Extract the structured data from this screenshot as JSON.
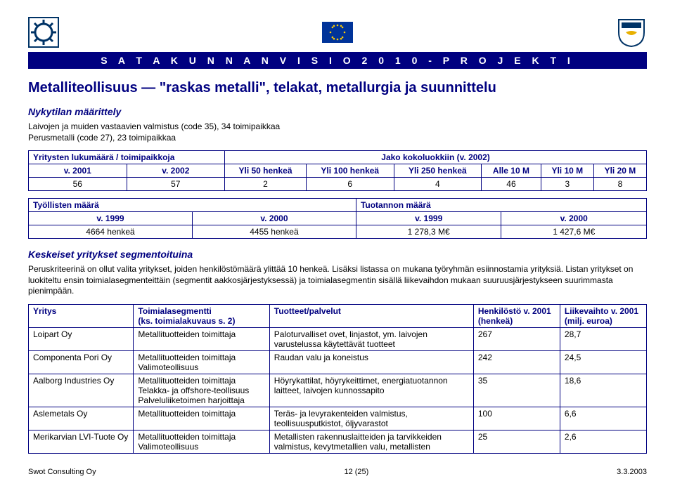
{
  "banner_text": "S A T A K U N N A N   V I S I O   2 0 1 0   - P R O J E K T I",
  "title": "Metalliteollisuus — \"raskas metalli\", telakat, metallurgia ja suunnittelu",
  "section1_heading": "Nykytilan määrittely",
  "intro_line1": "Laivojen ja muiden vastaavien valmistus (code 35), 34 toimipaikkaa",
  "intro_line2": "Perusmetalli (code 27), 23 toimipaikkaa",
  "table1": {
    "header_left": "Yritysten lukumäärä / toimipaikkoja",
    "header_right": "Jako kokoluokkiin (v. 2002)",
    "cols": [
      "v. 2001",
      "v. 2002",
      "Yli 50 henkeä",
      "Yli 100 henkeä",
      "Yli 250 henkeä",
      "Alle 10 M",
      "Yli 10 M",
      "Yli 20 M"
    ],
    "row": [
      "56",
      "57",
      "2",
      "6",
      "4",
      "46",
      "3",
      "8"
    ]
  },
  "table2": {
    "header_left": "Työllisten määrä",
    "header_right": "Tuotannon määrä",
    "cols": [
      "v. 1999",
      "v. 2000",
      "v. 1999",
      "v. 2000"
    ],
    "row": [
      "4664 henkeä",
      "4455 henkeä",
      "1 278,3 M€",
      "1 427,6 M€"
    ]
  },
  "section2_heading": "Keskeiset yritykset segmentoituina",
  "para2": "Peruskriteerinä on ollut valita yritykset, joiden henkilöstömäärä ylittää 10 henkeä. Lisäksi listassa on mukana työryhmän esiinnostamia yrityksiä. Listan yritykset on luokiteltu ensin toimialasegmenteittäin (segmentit aakkosjärjestyksessä) ja toimialasegmentin sisällä liikevaihdon mukaan suuruusjärjestykseen suurimmasta pienimpään.",
  "companies": {
    "headers": {
      "c1": "Yritys",
      "c2": "Toimialasegmentti\n(ks. toimialakuvaus s. 2)",
      "c3": "Tuotteet/palvelut",
      "c4": "Henkilöstö v. 2001\n(henkeä)",
      "c5": "Liikevaihto v. 2001\n(milj. euroa)"
    },
    "rows": [
      {
        "c1": "Loipart Oy",
        "c2": "Metallituotteiden toimittaja",
        "c3": "Paloturvalliset ovet, linjastot, ym. laivojen varustelussa käytettävät tuotteet",
        "c4": "267",
        "c5": "28,7"
      },
      {
        "c1": "Componenta Pori Oy",
        "c2": "Metallituotteiden toimittaja\nValimoteollisuus",
        "c3": "Raudan valu ja koneistus",
        "c4": "242",
        "c5": "24,5"
      },
      {
        "c1": "Aalborg Industries Oy",
        "c2": "Metallituotteiden toimittaja\nTelakka- ja offshore-teollisuus\nPalveluliiketoimen harjoittaja",
        "c3": "Höyrykattilat, höyrykeittimet, energiatuotannon laitteet, laivojen kunnossapito",
        "c4": "35",
        "c5": "18,6"
      },
      {
        "c1": "Aslemetals Oy",
        "c2": "Metallituotteiden toimittaja",
        "c3": "Teräs- ja levyrakenteiden valmistus, teollisuusputkistot, öljyvarastot",
        "c4": "100",
        "c5": "6,6"
      },
      {
        "c1": "Merikarvian LVI-Tuote Oy",
        "c2": "Metallituotteiden toimittaja\nValimoteollisuus",
        "c3": "Metallisten rakennuslaitteiden ja tarvikkeiden valmistus, kevytmetallien valu, metallisten",
        "c4": "25",
        "c5": "2,6"
      }
    ]
  },
  "footer": {
    "left": "Swot Consulting Oy",
    "center": "12 (25)",
    "right": "3.3.2003"
  },
  "colors": {
    "accent": "#000080",
    "eu_blue": "#003399",
    "eu_gold": "#ffcc00"
  }
}
